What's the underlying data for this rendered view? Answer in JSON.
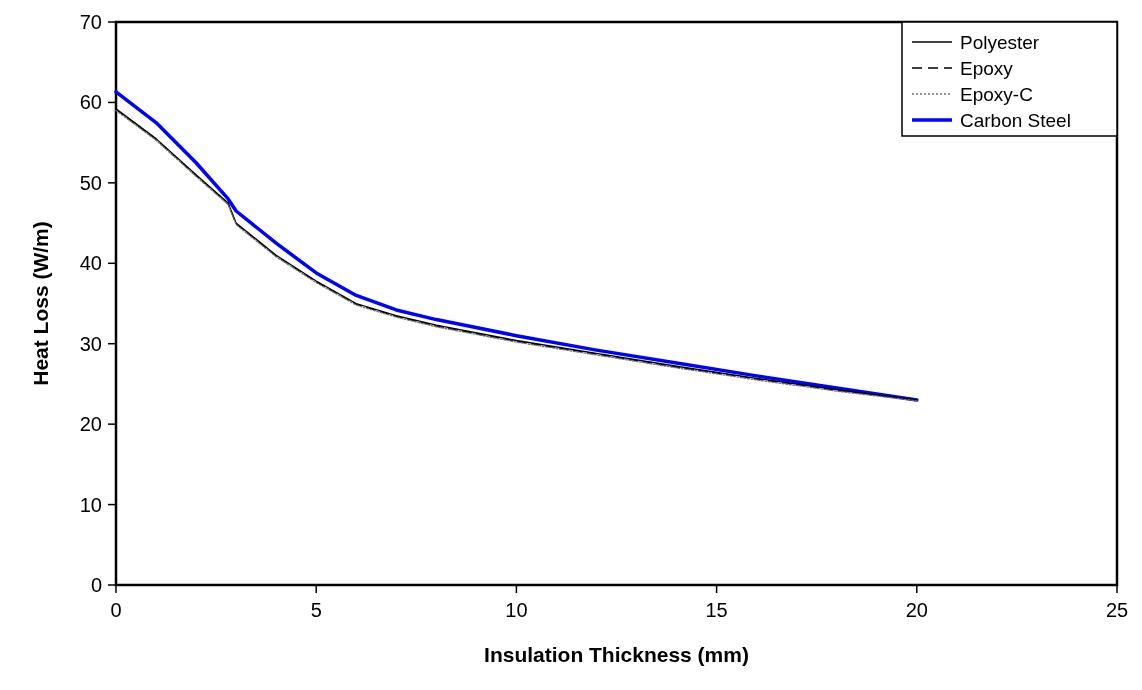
{
  "chart_data": {
    "type": "line",
    "xlabel": "Insulation Thickness (mm)",
    "ylabel": "Heat Loss (W/m)",
    "xlim": [
      0,
      25
    ],
    "xticks": [
      0,
      5,
      10,
      15,
      20,
      25
    ],
    "ylim": [
      0,
      70
    ],
    "yticks": [
      0,
      10,
      20,
      30,
      40,
      50,
      60,
      70
    ],
    "grid": false,
    "legend": "top right",
    "marker": "none",
    "x": [
      0,
      1,
      2,
      2.8,
      3,
      4,
      5,
      6,
      7,
      8,
      10,
      12,
      14,
      16,
      18,
      20
    ],
    "series": [
      {
        "name": "Polyester",
        "color": "#000000",
        "line_style": "solid",
        "values": [
          59.2,
          55.5,
          51,
          47.5,
          45,
          41,
          37.8,
          35,
          33.5,
          32.3,
          30.4,
          28.8,
          27.2,
          25.7,
          24.3,
          23
        ]
      },
      {
        "name": "Epoxy",
        "color": "#000000",
        "line_style": "dashed",
        "values": [
          59.1,
          55.4,
          50.9,
          47.4,
          44.9,
          40.9,
          37.7,
          34.9,
          33.4,
          32.2,
          30.3,
          28.7,
          27.1,
          25.6,
          24.2,
          23
        ]
      },
      {
        "name": "Epoxy-C",
        "color": "#707070",
        "line_style": "dotted",
        "values": [
          59,
          55.3,
          50.8,
          47.3,
          44.8,
          40.8,
          37.6,
          34.8,
          33.3,
          32.1,
          30.2,
          28.6,
          27,
          25.5,
          24.1,
          22.9
        ]
      },
      {
        "name": "Carbon Steel",
        "color": "#0000ff",
        "line_style": "solid",
        "values": [
          61.3,
          57.5,
          52.5,
          48,
          46.5,
          42.5,
          38.8,
          36,
          34.2,
          33,
          31,
          29.2,
          27.6,
          26,
          24.5,
          23
        ]
      }
    ]
  }
}
